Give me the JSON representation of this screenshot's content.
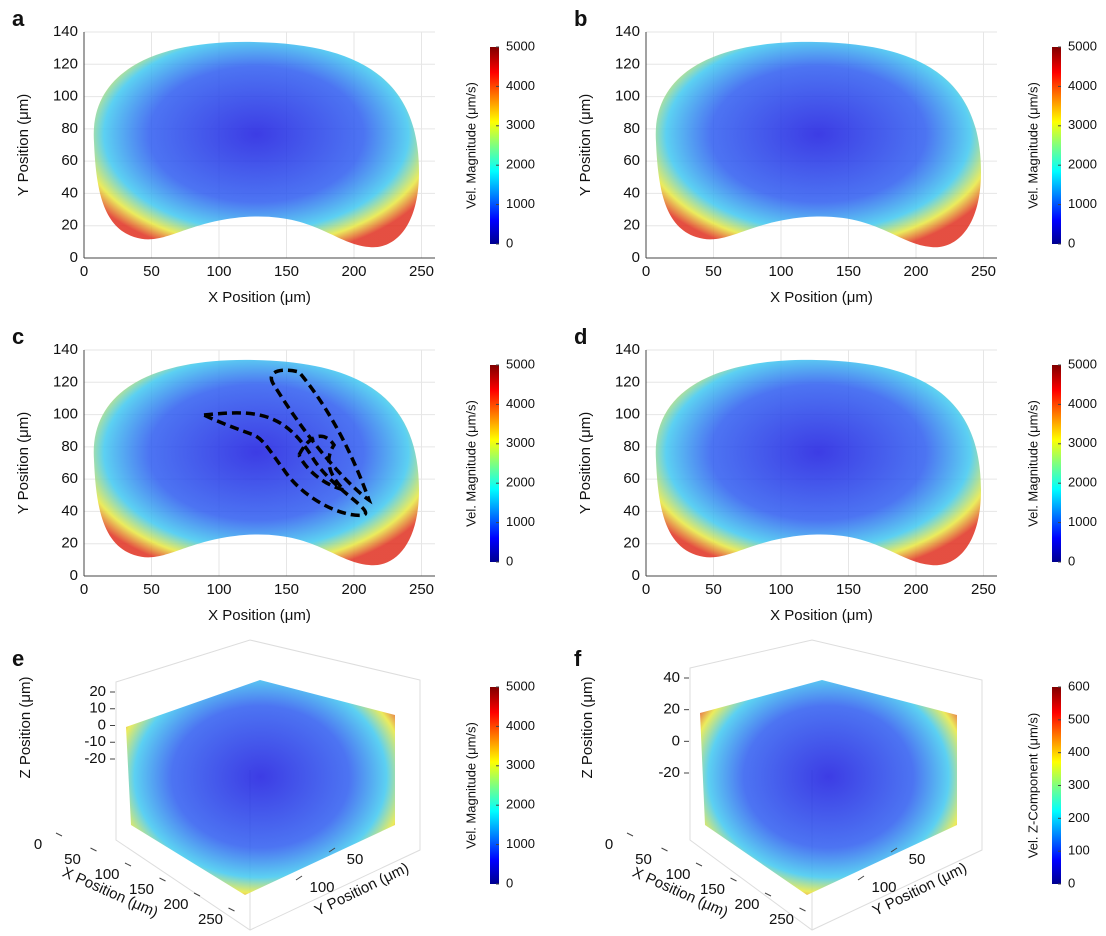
{
  "chart_data": [
    {
      "type": "quiver",
      "panel": "a",
      "xlabel": "X Position (μm)",
      "ylabel": "Y Position (μm)",
      "xlim": [
        0,
        260
      ],
      "ylim": [
        0,
        140
      ],
      "xticks": [
        0,
        50,
        100,
        150,
        200,
        250
      ],
      "yticks": [
        0,
        20,
        40,
        60,
        80,
        100,
        120,
        140
      ],
      "colorbar": {
        "label": "Vel. Magnitude (μm/s)",
        "lim": [
          0,
          5000
        ],
        "ticks": [
          0,
          1000,
          2000,
          3000,
          4000,
          5000
        ]
      },
      "grid": true
    },
    {
      "type": "quiver",
      "panel": "b",
      "xlabel": "X Position (μm)",
      "ylabel": "Y Position (μm)",
      "xlim": [
        0,
        260
      ],
      "ylim": [
        0,
        140
      ],
      "xticks": [
        0,
        50,
        100,
        150,
        200,
        250
      ],
      "yticks": [
        0,
        20,
        40,
        60,
        80,
        100,
        120,
        140
      ],
      "colorbar": {
        "label": "Vel. Magnitude (μm/s)",
        "lim": [
          0,
          5000
        ],
        "ticks": [
          0,
          1000,
          2000,
          3000,
          4000,
          5000
        ]
      },
      "grid": true
    },
    {
      "type": "quiver",
      "panel": "c",
      "xlabel": "X Position (μm)",
      "ylabel": "Y Position (μm)",
      "xlim": [
        0,
        260
      ],
      "ylim": [
        0,
        140
      ],
      "xticks": [
        0,
        50,
        100,
        150,
        200,
        250
      ],
      "yticks": [
        0,
        20,
        40,
        60,
        80,
        100,
        120,
        140
      ],
      "colorbar": {
        "label": "Vel. Magnitude (μm/s)",
        "lim": [
          0,
          5000
        ],
        "ticks": [
          0,
          1000,
          2000,
          3000,
          4000,
          5000
        ]
      },
      "grid": true
    },
    {
      "type": "quiver",
      "panel": "d",
      "xlabel": "X Position (μm)",
      "ylabel": "Y Position (μm)",
      "xlim": [
        0,
        260
      ],
      "ylim": [
        0,
        140
      ],
      "xticks": [
        0,
        50,
        100,
        150,
        200,
        250
      ],
      "yticks": [
        0,
        20,
        40,
        60,
        80,
        100,
        120,
        140
      ],
      "colorbar": {
        "label": "Vel. Magnitude (μm/s)",
        "lim": [
          0,
          5000
        ],
        "ticks": [
          0,
          1000,
          2000,
          3000,
          4000,
          5000
        ]
      },
      "grid": true
    },
    {
      "type": "quiver3d",
      "panel": "e",
      "xlabel": "X Position (μm)",
      "ylabel": "Y Position (μm)",
      "zlabel": "Z Position (μm)",
      "xticks": [
        0,
        50,
        100,
        150,
        200,
        250
      ],
      "yticks": [
        50,
        100
      ],
      "zticks": [
        -20,
        -10,
        0,
        10,
        20
      ],
      "colorbar": {
        "label": "Vel. Magnitude (μm/s)",
        "lim": [
          0,
          5000
        ],
        "ticks": [
          0,
          1000,
          2000,
          3000,
          4000,
          5000
        ]
      }
    },
    {
      "type": "quiver3d",
      "panel": "f",
      "xlabel": "X Position (μm)",
      "ylabel": "Y Position (μm)",
      "zlabel": "Z Position (μm)",
      "xticks": [
        0,
        50,
        100,
        150,
        200,
        250
      ],
      "yticks": [
        50,
        100
      ],
      "zticks": [
        -20,
        0,
        20,
        40
      ],
      "colorbar": {
        "label": "Vel. Z-Component (μm/s)",
        "lim": [
          0,
          600
        ],
        "ticks": [
          0,
          100,
          200,
          300,
          400,
          500,
          600
        ]
      }
    }
  ]
}
